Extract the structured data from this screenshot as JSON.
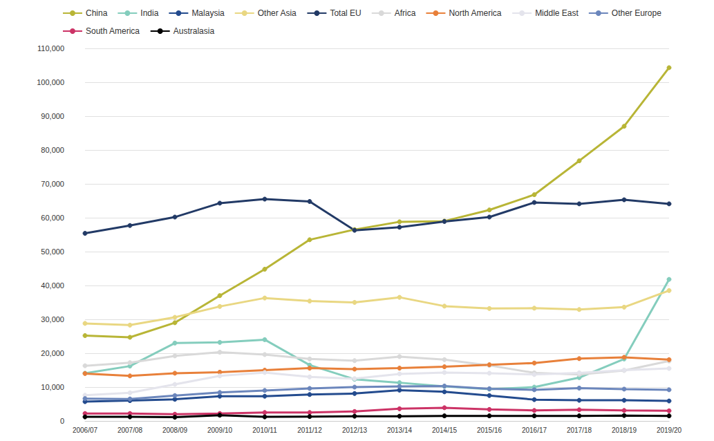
{
  "chart_data": {
    "type": "line",
    "categories": [
      "2006/07",
      "2007/08",
      "2008/09",
      "2009/10",
      "2010/11",
      "2011/12",
      "2012/13",
      "2013/14",
      "2014/15",
      "2015/16",
      "2016/17",
      "2017/18",
      "2018/19",
      "2019/20"
    ],
    "series": [
      {
        "name": "China",
        "color": "#b8b536",
        "values": [
          25200,
          24700,
          29000,
          37000,
          44800,
          53500,
          56500,
          58800,
          59000,
          62300,
          66800,
          76800,
          87000,
          104300
        ]
      },
      {
        "name": "India",
        "color": "#84cdbd",
        "values": [
          14100,
          16200,
          23000,
          23200,
          24000,
          16500,
          12300,
          11300,
          10200,
          9400,
          10000,
          12800,
          18300,
          41800
        ]
      },
      {
        "name": "Malaysia",
        "color": "#234b8e",
        "values": [
          5700,
          6000,
          6400,
          7300,
          7300,
          7800,
          8100,
          9100,
          8600,
          7500,
          6300,
          6100,
          6100,
          5900
        ]
      },
      {
        "name": "Other Asia",
        "color": "#e9d782",
        "values": [
          28800,
          28300,
          30600,
          33800,
          36300,
          35400,
          35000,
          36500,
          33900,
          33200,
          33300,
          32900,
          33600,
          38500
        ]
      },
      {
        "name": "Total EU",
        "color": "#223a66",
        "values": [
          55400,
          57700,
          60200,
          64300,
          65500,
          64800,
          56300,
          57200,
          58900,
          60200,
          64500,
          64100,
          65300,
          64100
        ]
      },
      {
        "name": "Africa",
        "color": "#d9d9d9",
        "values": [
          16300,
          17200,
          19200,
          20300,
          19600,
          18300,
          17800,
          19000,
          18100,
          16400,
          14200,
          13700,
          14900,
          17700
        ]
      },
      {
        "name": "North America",
        "color": "#e8803a",
        "values": [
          14000,
          13300,
          14100,
          14400,
          15000,
          15600,
          15300,
          15600,
          16000,
          16600,
          17100,
          18400,
          18800,
          18100
        ]
      },
      {
        "name": "Middle East",
        "color": "#e4e4ec",
        "values": [
          7600,
          8300,
          10800,
          13300,
          14300,
          13000,
          12500,
          13900,
          14300,
          14100,
          13700,
          14200,
          15000,
          15500
        ]
      },
      {
        "name": "Other Europe",
        "color": "#6b86bc",
        "values": [
          6600,
          6500,
          7500,
          8400,
          9000,
          9600,
          10000,
          10200,
          10300,
          9500,
          9200,
          9700,
          9400,
          9200
        ]
      },
      {
        "name": "South America",
        "color": "#cc3366",
        "values": [
          2200,
          2200,
          2000,
          2200,
          2500,
          2500,
          2800,
          3600,
          3900,
          3400,
          3100,
          3300,
          3100,
          3000
        ]
      },
      {
        "name": "Australasia",
        "color": "#000000",
        "values": [
          1200,
          1200,
          1100,
          1700,
          1200,
          1300,
          1400,
          1400,
          1500,
          1500,
          1500,
          1500,
          1600,
          1500
        ]
      }
    ],
    "ylim": [
      0,
      110000
    ],
    "yticks": [
      0,
      {
        "value": 10000,
        "label": "10,000"
      },
      {
        "value": 20000,
        "label": "20,000"
      },
      {
        "value": 30000,
        "label": "30,000"
      },
      {
        "value": 40000,
        "label": "40,000"
      },
      {
        "value": 50000,
        "label": "50,000"
      },
      {
        "value": 60000,
        "label": "60,000"
      },
      {
        "value": 70000,
        "label": "70,000"
      },
      {
        "value": 80000,
        "label": "80,000"
      },
      {
        "value": 90000,
        "label": "90,000"
      },
      {
        "value": 100000,
        "label": "100,000"
      },
      {
        "value": 110000,
        "label": "110,000"
      }
    ],
    "grid": true,
    "legend": "top-left",
    "marker": "circle"
  }
}
